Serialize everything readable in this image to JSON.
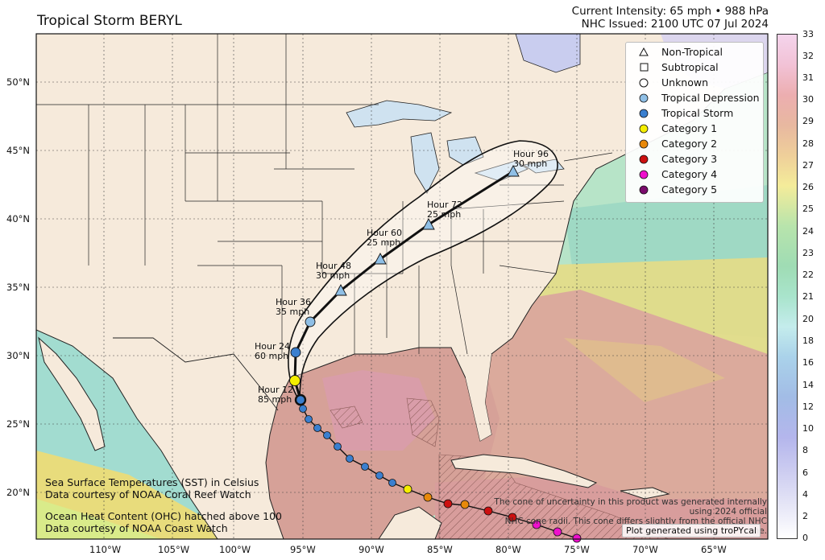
{
  "title": "Tropical Storm BERYL",
  "intensity_line": "Current Intensity: 65 mph • 988 hPa",
  "issued_line": "NHC Issued: 2100 UTC 07 Jul 2024",
  "legend": [
    {
      "label": "Non-Tropical",
      "symbol": "triangle",
      "color": "#ffffff"
    },
    {
      "label": "Subtropical",
      "symbol": "square",
      "color": "#ffffff"
    },
    {
      "label": "Unknown",
      "symbol": "circle",
      "color": "#ffffff"
    },
    {
      "label": "Tropical Depression",
      "symbol": "circle",
      "color": "#8fbfe6"
    },
    {
      "label": "Tropical Storm",
      "symbol": "circle",
      "color": "#3a7fcf"
    },
    {
      "label": "Category 1",
      "symbol": "circle",
      "color": "#f5ee00"
    },
    {
      "label": "Category 2",
      "symbol": "circle",
      "color": "#e8890a"
    },
    {
      "label": "Category 3",
      "symbol": "circle",
      "color": "#cc1010"
    },
    {
      "label": "Category 4",
      "symbol": "circle",
      "color": "#ee10cc"
    },
    {
      "label": "Category 5",
      "symbol": "circle",
      "color": "#7a0b6c"
    }
  ],
  "colorbar_ticks": [
    "33",
    "32",
    "31",
    "30",
    "29",
    "28",
    "27",
    "26",
    "25",
    "24",
    "23",
    "22",
    "21",
    "20",
    "18",
    "16",
    "14",
    "12",
    "10",
    "8",
    "6",
    "4",
    "2",
    "0"
  ],
  "lat_labels": [
    "50°N",
    "45°N",
    "40°N",
    "35°N",
    "30°N",
    "25°N",
    "20°N"
  ],
  "lon_labels": [
    "110°W",
    "105°W",
    "100°W",
    "95°W",
    "90°W",
    "85°W",
    "80°W",
    "75°W",
    "70°W",
    "65°W"
  ],
  "forecast_labels": [
    {
      "hour": "Hour 96",
      "wind": "30 mph"
    },
    {
      "hour": "Hour 72",
      "wind": "25 mph"
    },
    {
      "hour": "Hour 60",
      "wind": "25 mph"
    },
    {
      "hour": "Hour 48",
      "wind": "30 mph"
    },
    {
      "hour": "Hour 36",
      "wind": "35 mph"
    },
    {
      "hour": "Hour 24",
      "wind": "60 mph"
    },
    {
      "hour": "Hour 12",
      "wind": "85 mph"
    }
  ],
  "sst_note_1": "Sea Surface Temperatures (SST) in Celsius",
  "sst_note_2": "Data courtesy of NOAA Coral Reef Watch",
  "ohc_note_1": "Ocean Heat Content (OHC) hatched above 100",
  "ohc_note_2": "Data courtesy of NOAA Coast Watch",
  "cone_note_1": "The cone of uncertainty in this product was generated internally using 2024 official",
  "cone_note_2": "NHC cone radii. This cone differs slightly from the official NHC cone.",
  "tropycal_note": "Plot generated using troPYcal",
  "colors": {
    "land": "#f6eadb",
    "ocean_warm": "#d9a79e",
    "ocean_mid": "#e3d27a",
    "ocean_cool": "#9cd8b9",
    "ts": "#3a7fcf",
    "td": "#8fbfe6"
  }
}
